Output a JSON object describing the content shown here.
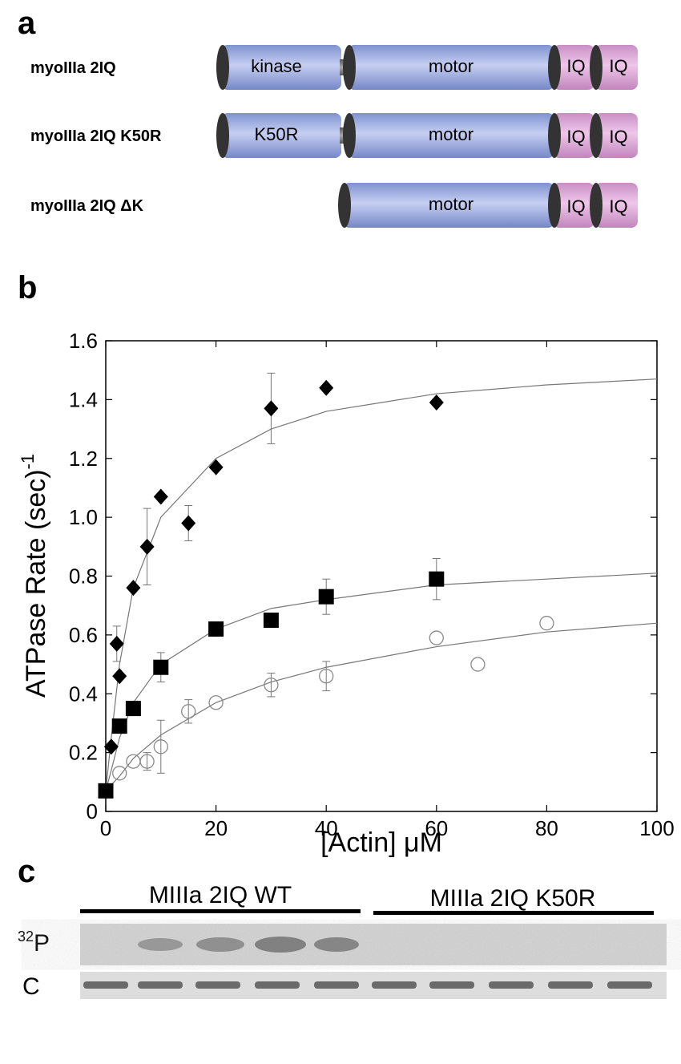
{
  "panel_a": {
    "label": "a",
    "rows": [
      {
        "name": "myoIIIa 2IQ",
        "domains": [
          "kinase",
          "motor",
          "IQ",
          "IQ"
        ]
      },
      {
        "name": "myoIIIa 2IQ K50R",
        "domains": [
          "K50R",
          "motor",
          "IQ",
          "IQ"
        ]
      },
      {
        "name": "myoIIIa 2IQ ΔK",
        "domains": [
          "motor",
          "IQ",
          "IQ"
        ]
      }
    ]
  },
  "panel_b": {
    "label": "b"
  },
  "chart_data": {
    "type": "scatter",
    "xlabel": "[Actin] μM",
    "ylabel": "ATPase Rate (sec)",
    "ylabel_superscript": "-1",
    "xlim": [
      0,
      100
    ],
    "ylim": [
      0,
      1.6
    ],
    "xticks": [
      0,
      20,
      40,
      60,
      80,
      100
    ],
    "yticks": [
      0,
      0.2,
      0.4,
      0.6,
      {
        "value": 0.8,
        "label": "0.8"
      },
      {
        "value": 1,
        "label": "1.0"
      },
      1.2,
      1.4,
      1.6
    ],
    "series": [
      {
        "marker": "diamond",
        "color": "#000000",
        "x": [
          1,
          2,
          2.5,
          5,
          7.5,
          10,
          15,
          20,
          30,
          40,
          60
        ],
        "values": [
          0.22,
          0.57,
          0.46,
          0.76,
          0.9,
          1.07,
          0.98,
          1.17,
          1.37,
          1.44,
          1.39
        ],
        "errors": [
          null,
          0.06,
          null,
          null,
          0.13,
          null,
          0.06,
          null,
          0.12,
          null,
          null
        ]
      },
      {
        "marker": "square",
        "color": "#000000",
        "x": [
          0,
          2.5,
          5,
          10,
          20,
          30,
          40,
          60
        ],
        "values": [
          0.07,
          0.29,
          0.35,
          0.49,
          0.62,
          0.65,
          0.73,
          0.79
        ],
        "errors": [
          null,
          null,
          null,
          0.05,
          null,
          null,
          0.06,
          0.07
        ]
      },
      {
        "marker": "circle",
        "color": "#8a8a8a",
        "x": [
          2.5,
          5,
          7.5,
          10,
          15,
          20,
          30,
          40,
          60,
          67.5,
          80
        ],
        "values": [
          0.13,
          0.17,
          0.17,
          0.22,
          0.34,
          0.37,
          0.43,
          0.46,
          0.59,
          0.5,
          0.64
        ],
        "errors": [
          null,
          null,
          0.03,
          0.09,
          0.04,
          null,
          0.04,
          0.05,
          null,
          null,
          null
        ]
      }
    ],
    "fits": [
      {
        "color": "#777777",
        "x": [
          0,
          1,
          2.5,
          5,
          10,
          20,
          30,
          40,
          60,
          80,
          100
        ],
        "values": [
          0.07,
          0.25,
          0.5,
          0.76,
          1.0,
          1.2,
          1.3,
          1.36,
          1.42,
          1.45,
          1.47
        ]
      },
      {
        "color": "#777777",
        "x": [
          0,
          1,
          2.5,
          5,
          10,
          20,
          30,
          40,
          60,
          80,
          100
        ],
        "values": [
          0.07,
          0.14,
          0.25,
          0.37,
          0.5,
          0.62,
          0.69,
          0.72,
          0.77,
          0.79,
          0.81
        ]
      },
      {
        "color": "#777777",
        "x": [
          0,
          2.5,
          5,
          10,
          20,
          30,
          40,
          60,
          80,
          100
        ],
        "values": [
          0.07,
          0.12,
          0.18,
          0.26,
          0.37,
          0.44,
          0.49,
          0.56,
          0.61,
          0.64
        ]
      }
    ]
  },
  "panel_c": {
    "label": "c",
    "groups": [
      "MIIIa 2IQ WT",
      "MIIIa 2IQ K50R"
    ],
    "rows": [
      {
        "superscript": "32",
        "label": "P"
      },
      {
        "label": "C"
      }
    ]
  }
}
